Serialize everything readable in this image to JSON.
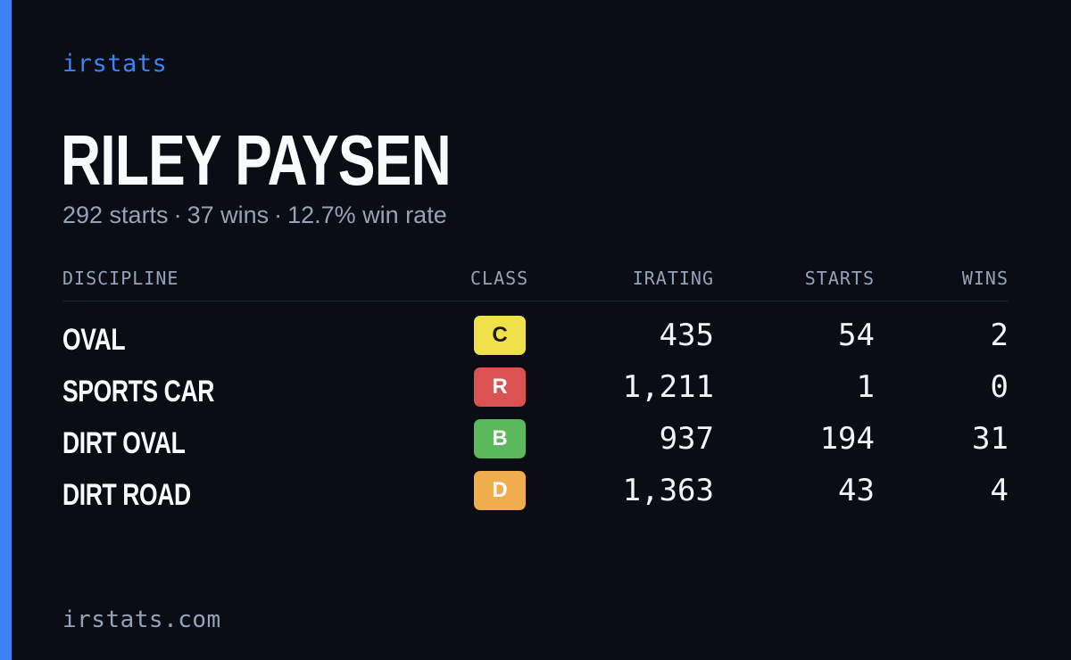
{
  "brand": "irstats",
  "driver": {
    "name": "RILEY PAYSEN",
    "starts_text": "292 starts",
    "wins_text": "37 wins",
    "win_rate_text": "12.7% win rate",
    "separator": "·"
  },
  "table": {
    "headers": {
      "discipline": "DISCIPLINE",
      "class": "CLASS",
      "irating": "IRATING",
      "starts": "STARTS",
      "wins": "WINS"
    },
    "rows": [
      {
        "discipline": "OVAL",
        "class": "C",
        "class_color": "#f0e04a",
        "class_text_color": "#1a1a1a",
        "irating": "435",
        "starts": "54",
        "wins": "2"
      },
      {
        "discipline": "SPORTS CAR",
        "class": "R",
        "class_color": "#dc5151",
        "class_text_color": "#ffffff",
        "irating": "1,211",
        "starts": "1",
        "wins": "0"
      },
      {
        "discipline": "DIRT OVAL",
        "class": "B",
        "class_color": "#5cb85c",
        "class_text_color": "#ffffff",
        "irating": "937",
        "starts": "194",
        "wins": "31"
      },
      {
        "discipline": "DIRT ROAD",
        "class": "D",
        "class_color": "#f0ad4e",
        "class_text_color": "#ffffff",
        "irating": "1,363",
        "starts": "43",
        "wins": "4"
      }
    ]
  },
  "footer": "irstats.com",
  "colors": {
    "background": "#0a0d14",
    "accent": "#3b82f6",
    "muted_text": "#94a3b8",
    "primary_text": "#f8fafc"
  }
}
